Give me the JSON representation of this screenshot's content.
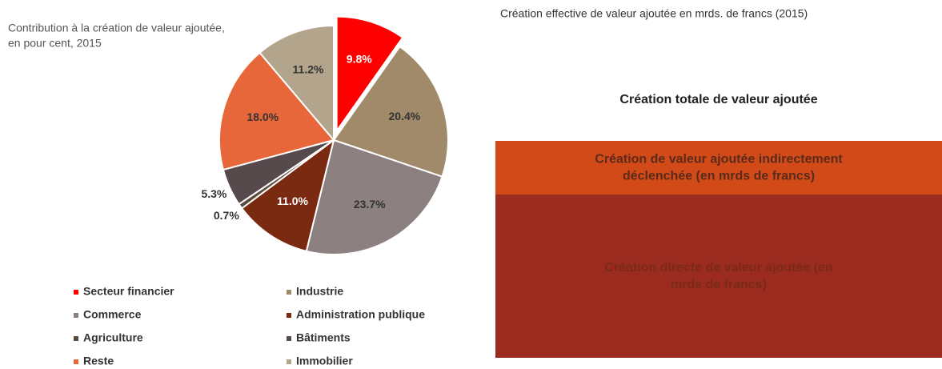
{
  "chart_data": {
    "type": "pie",
    "title": [
      "Contribution à la création de valeur ajoutée,",
      "en pour cent, 2015"
    ],
    "categories": [
      "Secteur financier",
      "Industrie",
      "Commerce",
      "Administration publique",
      "Agriculture",
      "Bâtiments",
      "Reste",
      "Immobilier"
    ],
    "values": [
      9.8,
      20.4,
      23.7,
      11.0,
      0.7,
      5.3,
      18.0,
      11.2
    ],
    "value_labels": [
      "9.8%",
      "20.4%",
      "23.7%",
      "11.0%",
      "0.7%",
      "5.3%",
      "18.0%",
      "11.2%"
    ],
    "colors": [
      "#ff0000",
      "#a08a6a",
      "#8c8080",
      "#7a2a10",
      "#5a4a3a",
      "#574a4c",
      "#e8673a",
      "#b3a58c"
    ],
    "exploded": "Secteur financier",
    "legend": "bottom"
  },
  "panel": {
    "title": "Création effective de valeur ajoutée en mrds. de francs (2015)",
    "header": "Création totale de valeur ajoutée",
    "blocks": [
      {
        "lines": [
          "Création de valeur ajoutée indirectement",
          "déclenchée (en mrds de francs)"
        ],
        "color": "#d24a18"
      },
      {
        "lines": [
          "Création directe  de valeur ajoutée (en",
          "mrds de francs)"
        ],
        "color": "#9b2b1e"
      }
    ]
  }
}
